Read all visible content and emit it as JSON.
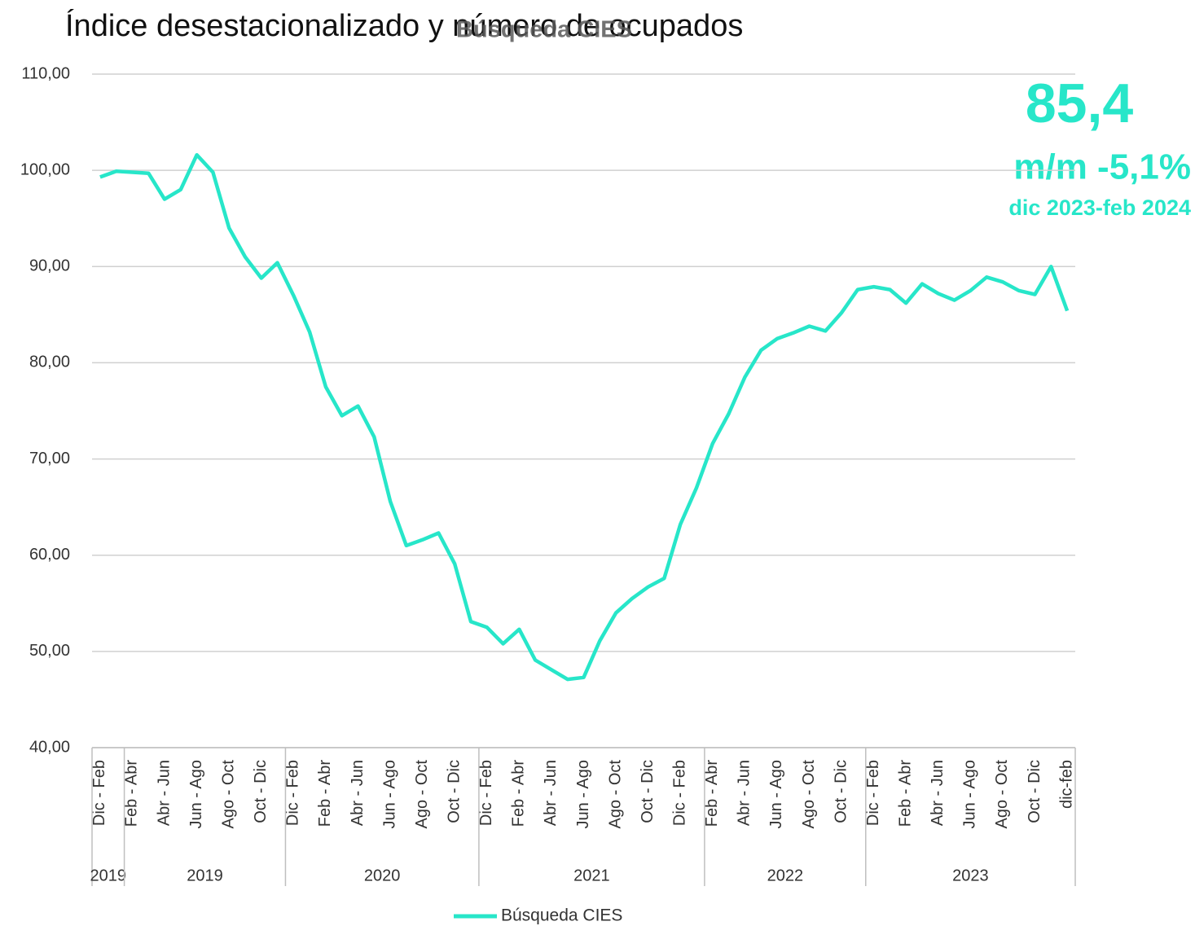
{
  "chart_data": {
    "type": "line",
    "heading": "Índice desestacionalizado y número de ocupados",
    "title": "Búsqueda CIES",
    "categories": [
      "Dic - Feb",
      null,
      "Feb - Abr",
      null,
      "Abr - Jun",
      null,
      "Jun - Ago",
      null,
      "Ago - Oct",
      null,
      "Oct - Dic",
      null,
      "Dic - Feb",
      null,
      "Feb - Abr",
      null,
      "Abr - Jun",
      null,
      "Jun - Ago",
      null,
      "Ago - Oct",
      null,
      "Oct - Dic",
      null,
      "Dic - Feb",
      null,
      "Feb - Abr",
      null,
      "Abr - Jun",
      null,
      "Jun - Ago",
      null,
      "Ago - Oct",
      null,
      "Oct - Dic",
      null,
      "Dic - Feb",
      null,
      "Feb - Abr",
      null,
      "Abr - Jun",
      null,
      "Jun - Ago",
      null,
      "Ago - Oct",
      null,
      "Oct - Dic",
      null,
      "Dic - Feb",
      null,
      "Feb - Abr",
      null,
      "Abr - Jun",
      null,
      "Jun - Ago",
      null,
      "Ago - Oct",
      null,
      "Oct - Dic",
      null,
      "dic-feb"
    ],
    "groups": [
      {
        "label": "2019",
        "count": 2
      },
      {
        "label": "2019",
        "count": 10
      },
      {
        "label": "2020",
        "count": 12
      },
      {
        "label": "2021",
        "count": 14
      },
      {
        "label": "2022",
        "count": 10
      },
      {
        "label": "2023",
        "count": 13
      }
    ],
    "series": [
      {
        "name": "Búsqueda CIES",
        "color": "#27e6c9",
        "values": [
          99.3,
          99.9,
          99.8,
          99.7,
          97.0,
          98.0,
          101.6,
          99.8,
          94.0,
          91.0,
          88.8,
          90.4,
          87.0,
          83.2,
          77.5,
          74.5,
          75.5,
          72.3,
          65.6,
          61.0,
          61.6,
          62.3,
          59.1,
          53.1,
          52.5,
          50.8,
          52.3,
          49.1,
          48.1,
          47.1,
          47.3,
          51.1,
          54.0,
          55.5,
          56.7,
          57.6,
          63.2,
          67.0,
          71.6,
          74.7,
          78.5,
          81.3,
          82.5,
          83.1,
          83.8,
          83.3,
          85.2,
          87.6,
          87.9,
          87.6,
          86.2,
          88.2,
          87.2,
          86.5,
          87.5,
          88.9,
          88.4,
          87.5,
          87.1,
          90.0,
          85.4
        ]
      }
    ],
    "ylim": [
      40,
      110
    ],
    "yticks": [
      {
        "value": 40,
        "label": "40,00"
      },
      {
        "value": 50,
        "label": "50,00"
      },
      {
        "value": 60,
        "label": "60,00"
      },
      {
        "value": 70,
        "label": "70,00"
      },
      {
        "value": 80,
        "label": "80,00"
      },
      {
        "value": 90,
        "label": "90,00"
      },
      {
        "value": 100,
        "label": "100,00"
      },
      {
        "value": 110,
        "label": "110,00"
      }
    ],
    "grid": true,
    "legend": "bottom",
    "annotations": [
      "85,4",
      "m/m -5,1%",
      "dic 2023-feb 2024"
    ]
  }
}
